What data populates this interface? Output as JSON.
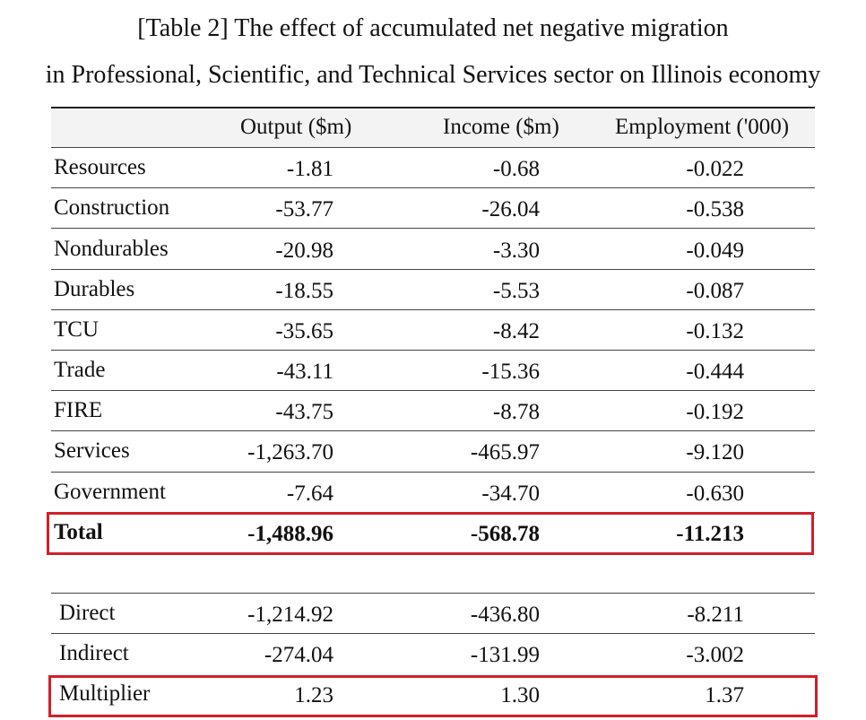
{
  "title": {
    "line1": "[Table 2] The effect of accumulated net negative migration",
    "line2": "in Professional, Scientific, and Technical Services sector on Illinois economy"
  },
  "columns": [
    "",
    "Output ($m)",
    "Income ($m)",
    "Employment ('000)"
  ],
  "sectors": [
    {
      "label": "Resources",
      "output": "-1.81",
      "income": "-0.68",
      "employment": "-0.022"
    },
    {
      "label": "Construction",
      "output": "-53.77",
      "income": "-26.04",
      "employment": "-0.538"
    },
    {
      "label": "Nondurables",
      "output": "-20.98",
      "income": "-3.30",
      "employment": "-0.049"
    },
    {
      "label": "Durables",
      "output": "-18.55",
      "income": "-5.53",
      "employment": "-0.087"
    },
    {
      "label": "TCU",
      "output": "-35.65",
      "income": "-8.42",
      "employment": "-0.132"
    },
    {
      "label": "Trade",
      "output": "-43.11",
      "income": "-15.36",
      "employment": "-0.444"
    },
    {
      "label": "FIRE",
      "output": "-43.75",
      "income": "-8.78",
      "employment": "-0.192"
    },
    {
      "label": "Services",
      "output": "-1,263.70",
      "income": "-465.97",
      "employment": "-9.120"
    },
    {
      "label": "Government",
      "output": "-7.64",
      "income": "-34.70",
      "employment": "-0.630"
    }
  ],
  "total": {
    "label": "Total",
    "output": "-1,488.96",
    "income": "-568.78",
    "employment": "-11.213"
  },
  "breakdown": [
    {
      "label": "Direct",
      "output": "-1,214.92",
      "income": "-436.80",
      "employment": "-8.211"
    },
    {
      "label": "Indirect",
      "output": "-274.04",
      "income": "-131.99",
      "employment": "-3.002"
    }
  ],
  "multiplier": {
    "label": "Multiplier",
    "output": "1.23",
    "income": "1.30",
    "employment": "1.37"
  },
  "highlight_color": "#d0202a"
}
